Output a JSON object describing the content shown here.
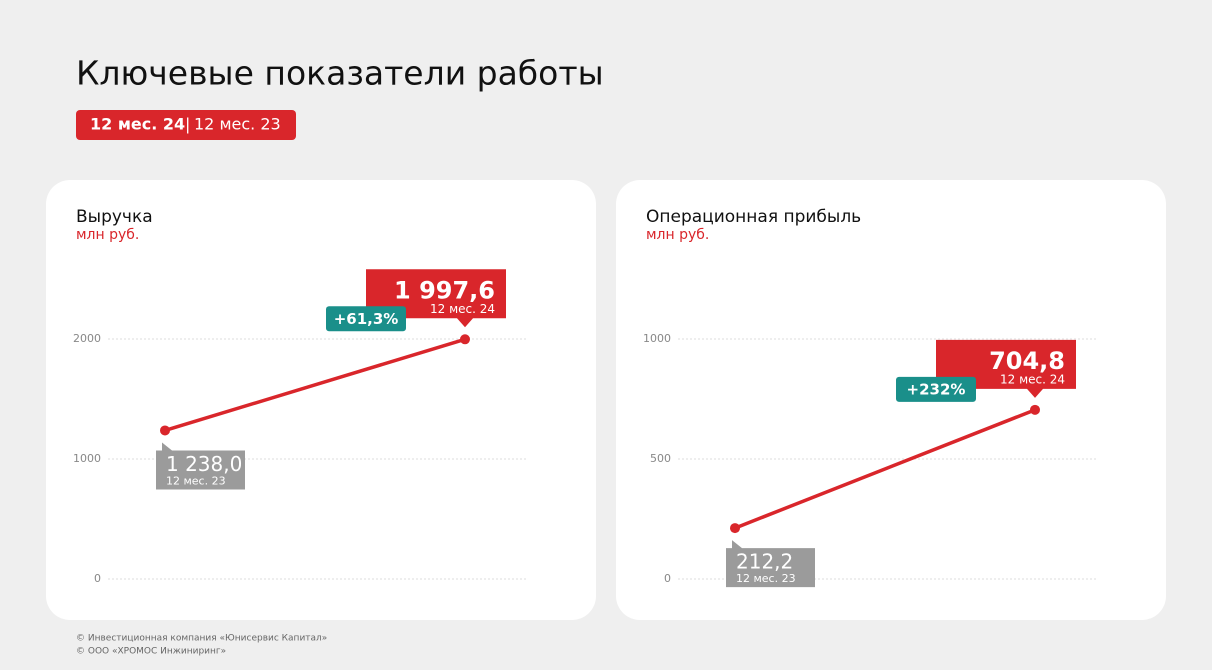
{
  "title": "Ключевые показатели работы",
  "period_badge": {
    "current": "12 мес. 24",
    "separator": "|",
    "previous": "12 мес. 23"
  },
  "chart_data": [
    {
      "type": "line",
      "title": "Выручка",
      "subtitle": "млн руб.",
      "categories": [
        "12 мес. 23",
        "12 мес. 24"
      ],
      "series": [
        {
          "name": "Выручка",
          "color": "#d9262b",
          "values": [
            1238.0,
            1997.6
          ],
          "value_labels": [
            "1 238,0",
            "1 997,6"
          ]
        }
      ],
      "change_label": "+61,3%",
      "ylim": [
        0,
        2000
      ],
      "yticks": [
        0,
        1000,
        2000
      ],
      "grid": true
    },
    {
      "type": "line",
      "title": "Операционная прибыль",
      "subtitle": "млн руб.",
      "categories": [
        "12 мес. 23",
        "12 мес. 24"
      ],
      "series": [
        {
          "name": "Операционная прибыль",
          "color": "#d9262b",
          "values": [
            212.2,
            704.8
          ],
          "value_labels": [
            "212,2",
            "704,8"
          ]
        }
      ],
      "change_label": "+232%",
      "ylim": [
        0,
        1000
      ],
      "yticks": [
        0,
        500,
        1000
      ],
      "grid": true
    }
  ],
  "footer": [
    "© Инвестиционная компания «Юнисервис Капитал»",
    "© ООО «ХРОМОС Инжиниринг»"
  ]
}
